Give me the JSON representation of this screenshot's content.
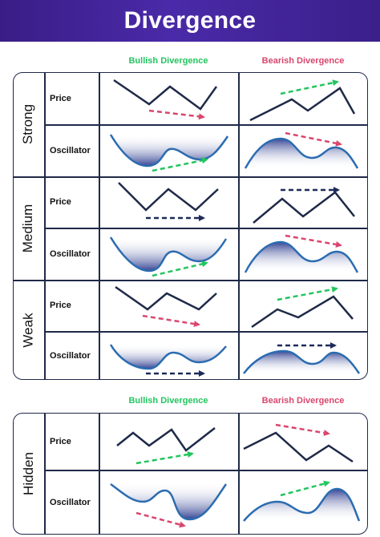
{
  "title": "Divergence",
  "column_headers": {
    "bullish": "Bullish Divergence",
    "bearish": "Bearish Divergence"
  },
  "row_labels": {
    "price": "Price",
    "oscillator": "Oscillator"
  },
  "groups": {
    "strong": "Strong",
    "medium": "Medium",
    "weak": "Weak",
    "hidden": "Hidden"
  },
  "colors": {
    "header_bg": "#3a1d86",
    "bullish": "#22c55e",
    "bearish": "#d9466d",
    "neutral_arrow": "#1e2a5a",
    "line": "#1f2a48",
    "oscillator_line": "#2b6cb0",
    "oscillator_fill": "#2b3b8f"
  }
}
